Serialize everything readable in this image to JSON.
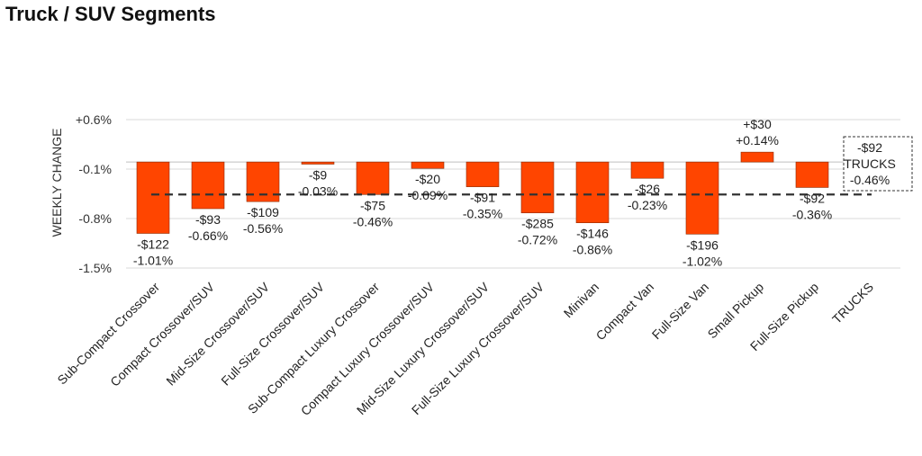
{
  "title": "Truck / SUV Segments",
  "chart_data": {
    "type": "bar",
    "ylabel": "WEEKLY CHANGE",
    "ylim": [
      -1.5,
      0.6
    ],
    "yticks": [
      "+0.6%",
      "-0.1%",
      "-0.8%",
      "-1.5%"
    ],
    "ytick_values": [
      0.6,
      -0.1,
      -0.8,
      -1.5
    ],
    "grid": true,
    "bar_color": "#FF4500",
    "reference_line": {
      "label": "TRUCKS",
      "value": -0.46,
      "style": "dashed"
    },
    "categories": [
      "Sub-Compact Crossover",
      "Compact Crossover/SUV",
      "Mid-Size Crossover/SUV",
      "Full-Size Crossover/SUV",
      "Sub-Compact Luxury Crossover",
      "Compact Luxury Crossover/SUV",
      "Mid-Size Luxury Crossover/SUV",
      "Full-Size Luxury Crossover/SUV",
      "Minivan",
      "Compact Van",
      "Full-Size Van",
      "Small Pickup",
      "Full-Size Pickup",
      "TRUCKS"
    ],
    "values": [
      -1.01,
      -0.66,
      -0.56,
      -0.03,
      -0.46,
      -0.09,
      -0.35,
      -0.72,
      -0.86,
      -0.23,
      -1.02,
      0.14,
      -0.36,
      -0.46
    ],
    "dollar_labels": [
      "-$122",
      "-$93",
      "-$109",
      "-$9",
      "-$75",
      "-$20",
      "-$91",
      "-$285",
      "-$146",
      "-$26",
      "-$196",
      "+$30",
      "-$92",
      "-$92"
    ],
    "pct_labels": [
      "-1.01%",
      "-0.66%",
      "-0.56%",
      "-0.03%",
      "-0.46%",
      "-0.09%",
      "-0.35%",
      "-0.72%",
      "-0.86%",
      "-0.23%",
      "-1.02%",
      "+0.14%",
      "-0.36%",
      "-0.46%"
    ],
    "summary_box": {
      "dollar": "-$92",
      "label": "TRUCKS",
      "pct": "-0.46%"
    }
  }
}
